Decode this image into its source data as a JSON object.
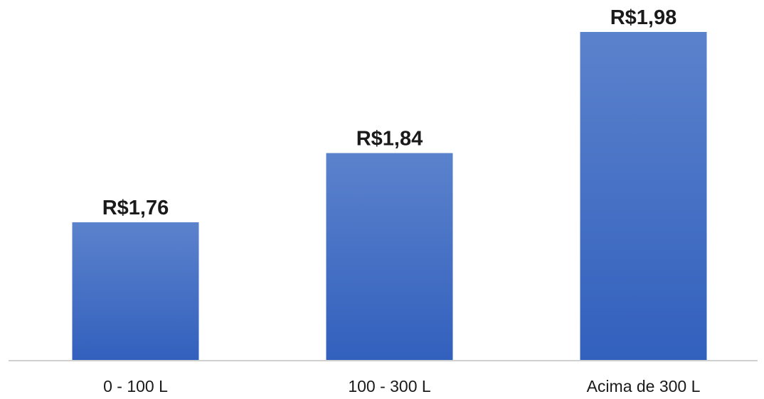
{
  "chart_data": {
    "type": "bar",
    "categories": [
      "0 - 100 L",
      "100 - 300 L",
      "Acima de 300 L"
    ],
    "values": [
      1.76,
      1.84,
      1.98
    ],
    "data_labels": [
      "R$1,76",
      "R$1,84",
      "R$1,98"
    ],
    "title": "",
    "xlabel": "",
    "ylabel": "",
    "ylim": [
      1.6,
      1.98
    ],
    "grid": false,
    "legend": "none",
    "colors": {
      "bar_top": "#5b82cc",
      "bar_bottom": "#3260bd",
      "axis": "#d0d0d0"
    }
  }
}
